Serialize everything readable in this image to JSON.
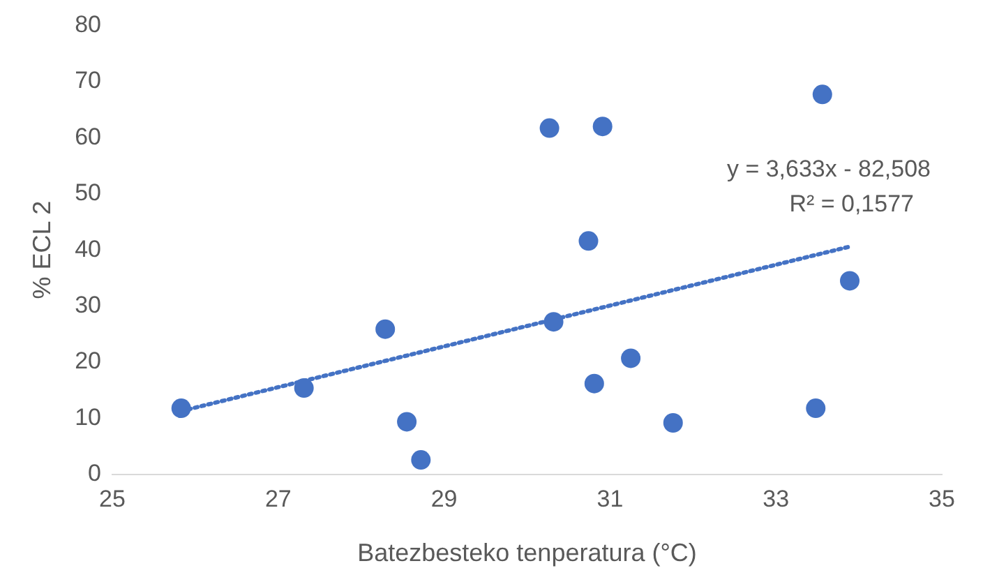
{
  "chart_data": {
    "type": "scatter",
    "xlabel": "Batezbesteko tenperatura (°C)",
    "ylabel": "% ECL 2",
    "xlim": [
      25,
      35
    ],
    "xticks": [
      25,
      27,
      29,
      31,
      33,
      35
    ],
    "ylim": [
      0,
      80
    ],
    "yticks": [
      0,
      10,
      20,
      30,
      40,
      50,
      60,
      70,
      80
    ],
    "grid": false,
    "legend": false,
    "marker": "circle",
    "annotations": [
      "y = 3,633x - 82,508",
      "R² = 0,1577"
    ],
    "series": [
      {
        "type": "scatter",
        "color": "#4472c4",
        "x": [
          25.83,
          27.31,
          28.29,
          28.55,
          28.72,
          30.27,
          30.32,
          30.91,
          30.74,
          30.81,
          31.25,
          31.76,
          33.48,
          33.56,
          33.89
        ],
        "values": [
          11.8,
          15.4,
          25.9,
          9.4,
          2.6,
          61.7,
          27.2,
          62.0,
          41.6,
          16.2,
          20.7,
          9.2,
          11.8,
          67.7,
          34.5
        ]
      },
      {
        "type": "line",
        "color": "#4472c4",
        "line_style": "dotted",
        "marker": "none",
        "x": [
          25.83,
          33.89
        ],
        "values": [
          11.3,
          40.6
        ]
      }
    ]
  }
}
